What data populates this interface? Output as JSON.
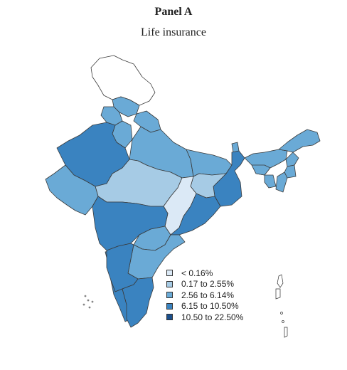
{
  "title": "Panel A",
  "subtitle": "Life insurance",
  "colors": {
    "c0": "#dbe9f6",
    "c1": "#a6cbe5",
    "c2": "#6aaad6",
    "c3": "#3a83c0",
    "c4": "#1b4f8c",
    "nodata": "#ffffff"
  },
  "legend": [
    {
      "label": "< 0.16%",
      "color": "#dbe9f6"
    },
    {
      "label": "0.17 to 2.55%",
      "color": "#a6cbe5"
    },
    {
      "label": "2.56 to 6.14%",
      "color": "#6aaad6"
    },
    {
      "label": "6.15 to 10.50%",
      "color": "#3a83c0"
    },
    {
      "label": "10.50 to 22.50%",
      "color": "#1b4f8c"
    }
  ]
}
